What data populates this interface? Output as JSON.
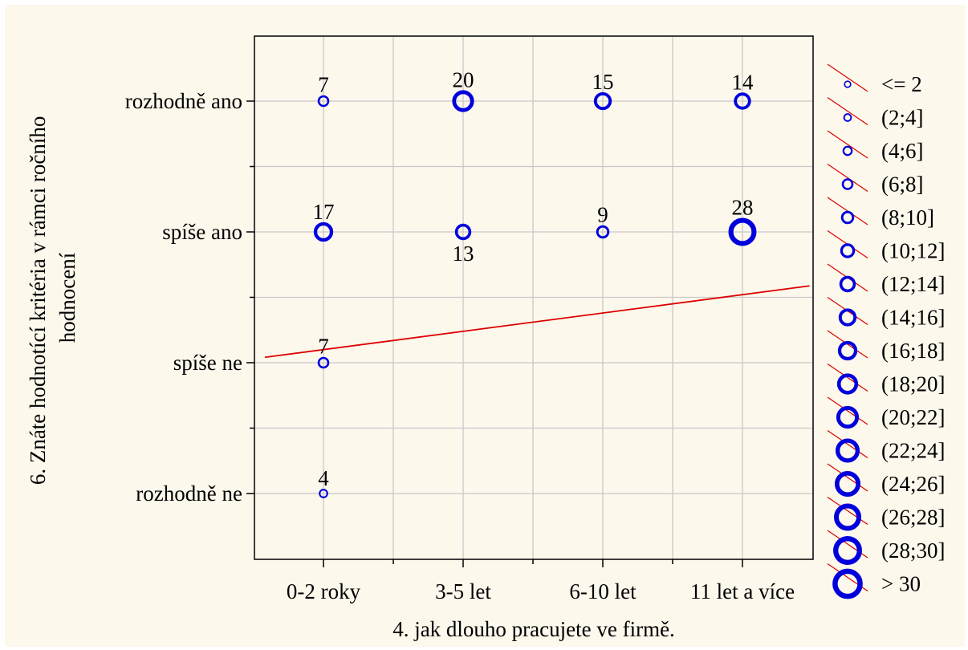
{
  "chart_data": {
    "type": "scatter",
    "subtype": "bubble",
    "title": "",
    "xlabel": "4. jak dlouho pracujete ve firmě.",
    "ylabel_lines": [
      "6. Znáte hodnotící kritéria v rámci ročního",
      "hodnocení"
    ],
    "x_categories": [
      "0-2 roky",
      "3-5 let",
      "6-10 let",
      "11 let a více"
    ],
    "y_categories": [
      "rozhodně ne",
      "spíše ne",
      "spíše ano",
      "rozhodně ano"
    ],
    "grid": true,
    "points": [
      {
        "x": "0-2 roky",
        "y": "rozhodně ano",
        "count": 7,
        "label_pos": "above"
      },
      {
        "x": "3-5 let",
        "y": "rozhodně ano",
        "count": 20,
        "label_pos": "above"
      },
      {
        "x": "6-10 let",
        "y": "rozhodně ano",
        "count": 15,
        "label_pos": "above"
      },
      {
        "x": "11 let a více",
        "y": "rozhodně ano",
        "count": 14,
        "label_pos": "above"
      },
      {
        "x": "0-2 roky",
        "y": "spíše ano",
        "count": 17,
        "label_pos": "above"
      },
      {
        "x": "3-5 let",
        "y": "spíše ano",
        "count": 13,
        "label_pos": "below"
      },
      {
        "x": "6-10 let",
        "y": "spíše ano",
        "count": 9,
        "label_pos": "above"
      },
      {
        "x": "11 let a více",
        "y": "spíše ano",
        "count": 28,
        "label_pos": "above"
      },
      {
        "x": "0-2 roky",
        "y": "spíše ne",
        "count": 7,
        "label_pos": "above"
      },
      {
        "x": "0-2 roky",
        "y": "rozhodně ne",
        "count": 4,
        "label_pos": "above"
      }
    ],
    "trend_line": {
      "color": "#dd0000",
      "x_range": [
        0.58,
        4.48
      ],
      "y_at_x1": 2.1,
      "slope": 0.14
    },
    "legend": {
      "placement": "right",
      "entries": [
        "<= 2",
        "(2;4]",
        "(4;6]",
        "(6;8]",
        "(8;10]",
        "(10;12]",
        "(12;14]",
        "(14;16]",
        "(16;18]",
        "(18;20]",
        "(20;22]",
        "(22;24]",
        "(24;26]",
        "(26;28]",
        "(28;30]",
        "> 30"
      ]
    },
    "colors": {
      "background": "#fdf8ec",
      "bubble": "#0000dd",
      "trend": "#dd0000",
      "grid": "#c8c8c8",
      "axis": "#000000"
    }
  }
}
